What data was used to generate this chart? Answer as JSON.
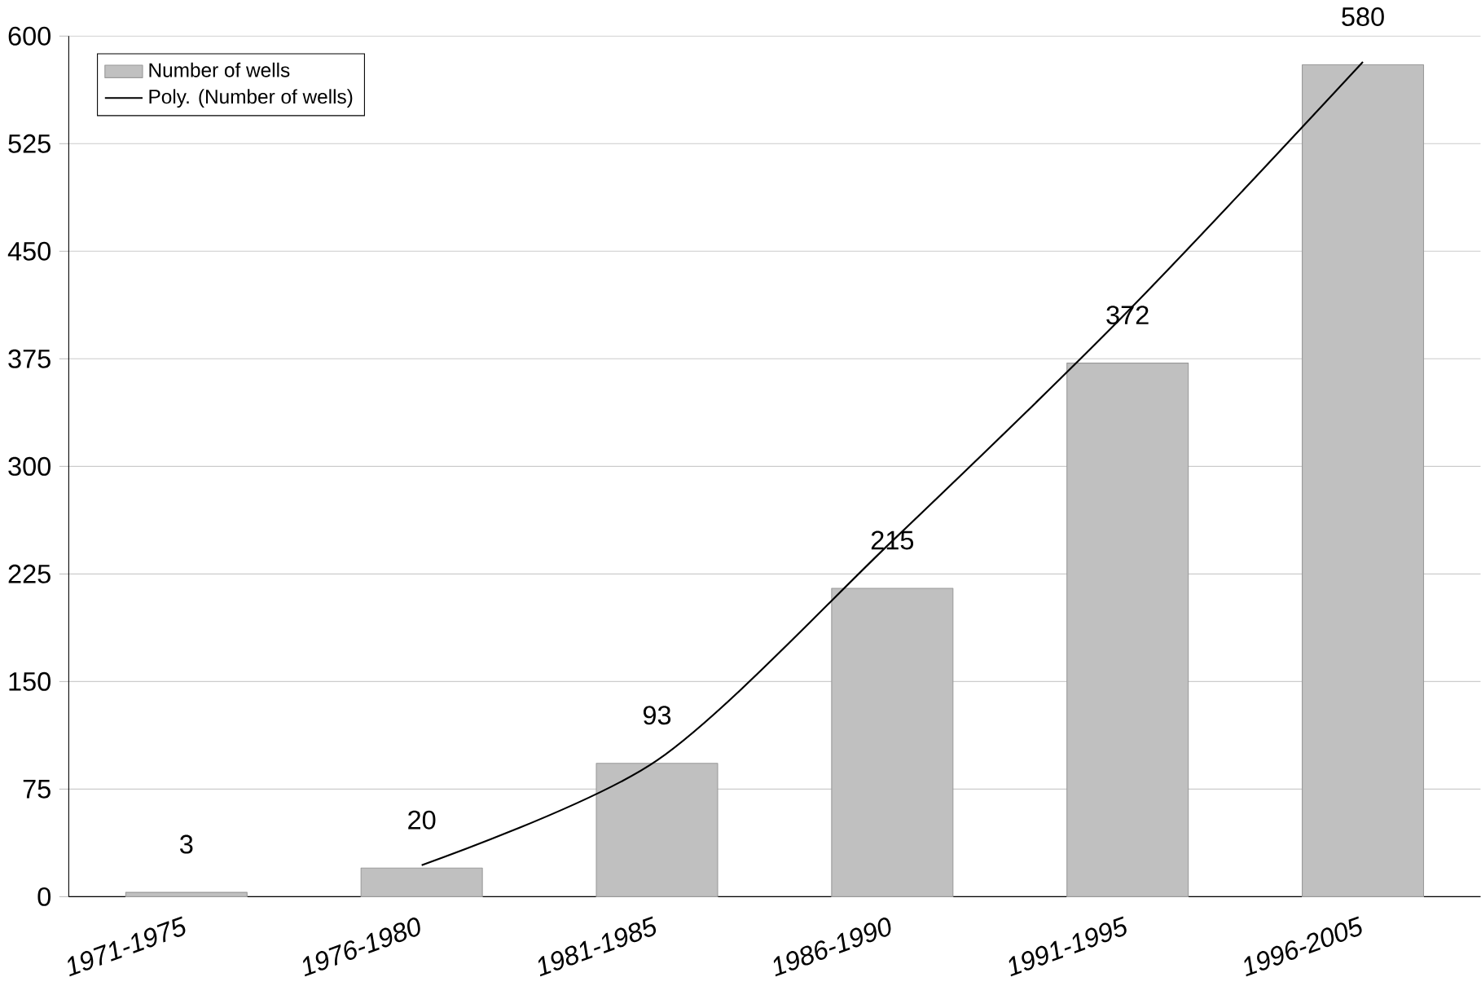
{
  "chart_data": {
    "type": "bar",
    "categories": [
      "1971-1975",
      "1976-1980",
      "1981-1985",
      "1986-1990",
      "1991-1995",
      "1996-2005"
    ],
    "series": [
      {
        "name": "Number of wells",
        "color": "#c0c0c0",
        "values": [
          3,
          20,
          93,
          215,
          372,
          580
        ],
        "value_labels": [
          "3",
          "20",
          "93",
          "215",
          "372",
          "580"
        ]
      },
      {
        "name": "Poly. (Number of wells)",
        "type": "line",
        "color": "#000000",
        "values": [
          null,
          22,
          95,
          248,
          408,
          582
        ]
      }
    ],
    "ylim": [
      0,
      600
    ],
    "yticks": [
      0,
      75,
      150,
      225,
      300,
      375,
      450,
      525,
      600
    ],
    "grid": "y",
    "legend": "top left",
    "marker": "none",
    "line_style": "solid"
  }
}
